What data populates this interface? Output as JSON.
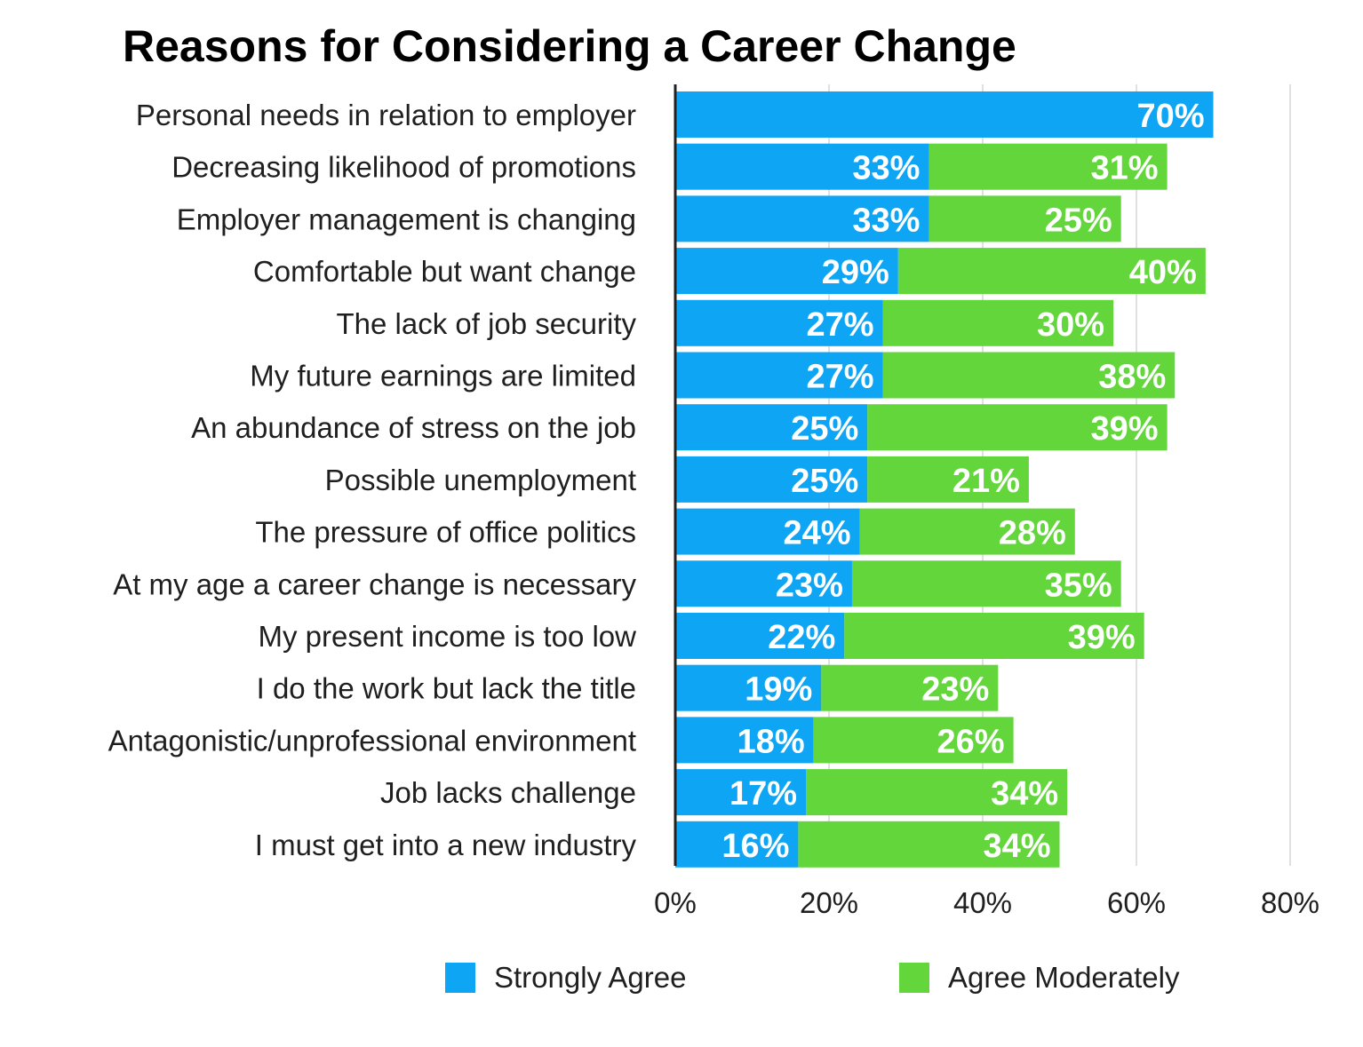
{
  "chart_data": {
    "type": "bar",
    "orientation": "horizontal",
    "stacked": true,
    "title": "Reasons for Considering a Career Change",
    "categories": [
      "Personal needs in relation to employer",
      "Decreasing likelihood of promotions",
      "Employer management is changing",
      "Comfortable but want change",
      "The lack of job security",
      "My future earnings are limited",
      "An abundance of stress on the job",
      "Possible unemployment",
      "The pressure of office politics",
      "At my age a career change is necessary",
      "My present income is too low",
      "I do the work but lack the title",
      "Antagonistic/unprofessional environment",
      "Job lacks challenge",
      "I must get into a new industry"
    ],
    "series": [
      {
        "name": "Strongly Agree",
        "color": "#0ea5f4",
        "values": [
          70,
          33,
          33,
          29,
          27,
          27,
          25,
          25,
          24,
          23,
          22,
          19,
          18,
          17,
          16
        ],
        "labels": [
          "70%",
          "33%",
          "33%",
          "29%",
          "27%",
          "27%",
          "25%",
          "25%",
          "24%",
          "23%",
          "22%",
          "19%",
          "18%",
          "17%",
          "16%"
        ]
      },
      {
        "name": "Agree Moderately",
        "color": "#62d63b",
        "values": [
          null,
          31,
          25,
          40,
          30,
          38,
          39,
          21,
          28,
          35,
          39,
          23,
          26,
          34,
          34
        ],
        "labels": [
          "",
          "31%",
          "25%",
          "40%",
          "30%",
          "38%",
          "39%",
          "21%",
          "28%",
          "35%",
          "39%",
          "23%",
          "26%",
          "34%",
          "34%"
        ]
      }
    ],
    "xlim": [
      0,
      80
    ],
    "xticks": [
      0,
      20,
      40,
      60,
      80
    ],
    "xtick_labels": [
      "0%",
      "20%",
      "40%",
      "60%",
      "80%"
    ],
    "grid": true,
    "legend_position": "bottom"
  }
}
